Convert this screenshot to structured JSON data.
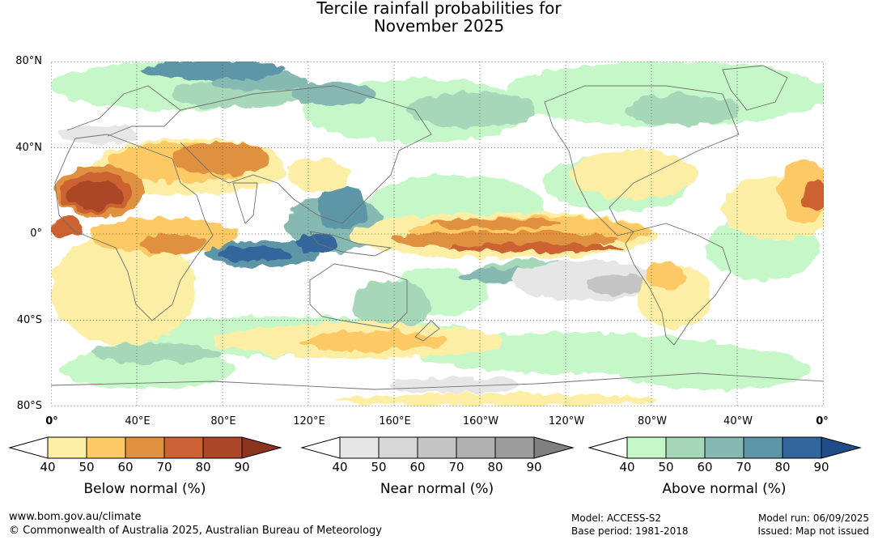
{
  "title": {
    "line1": "Tercile rainfall probabilities for",
    "line2": "November 2025"
  },
  "map": {
    "lat_labels": [
      "80°N",
      "40°N",
      "0°",
      "40°S",
      "80°S"
    ],
    "lon_labels": [
      "0°",
      "40°E",
      "80°E",
      "120°E",
      "160°E",
      "160°W",
      "120°W",
      "80°W",
      "40°W",
      "0°"
    ],
    "colors": {
      "below": [
        "#fdeea5",
        "#fdc965",
        "#e0913f",
        "#cc6233",
        "#ab4628",
        "#8c3420"
      ],
      "near": [
        "#e6e6e6",
        "#d7d7d7",
        "#c4c4c4",
        "#b1b1b1",
        "#9c9c9c",
        "#808080"
      ],
      "above": [
        "#c6f7c8",
        "#a6d7b8",
        "#86b9b2",
        "#5d96a6",
        "#33669c",
        "#1f4d87"
      ],
      "coast": "#707070",
      "grid": "#555555"
    }
  },
  "legend": {
    "ticks": [
      "40",
      "50",
      "60",
      "70",
      "80",
      "90"
    ],
    "below_label": "Below normal (%)",
    "near_label": "Near normal (%)",
    "above_label": "Above normal (%)"
  },
  "footer": {
    "url": "www.bom.gov.au/climate",
    "copyright": "© Commonwealth of Australia 2025, Australian Bureau of Meteorology",
    "model": "Model: ACCESS-S2",
    "base_period": "Base period: 1981-2018",
    "model_run": "Model run: 06/09/2025",
    "issued": "Issued: Map not issued"
  }
}
